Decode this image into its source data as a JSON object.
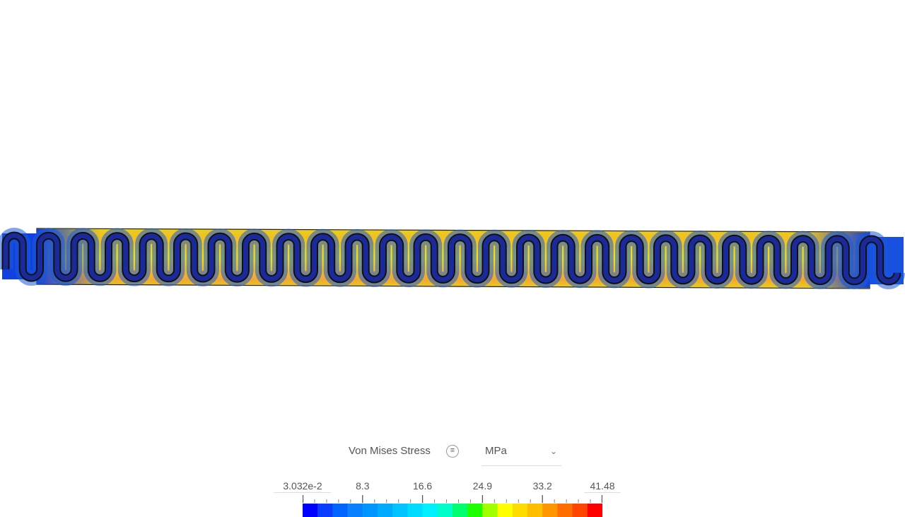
{
  "legend": {
    "title": "Von Mises Stress",
    "info_icon": "list-icon",
    "info_glyph": "≡",
    "unit": "MPa",
    "dropdown_icon": "chevron-down-icon",
    "tick_labels": [
      "3.032e-2",
      "8.3",
      "16.6",
      "24.9",
      "33.2",
      "41.48"
    ],
    "min": 0.03032,
    "max": 41.48,
    "colors": [
      "#0000ff",
      "#0a3cff",
      "#0064ff",
      "#0a82ff",
      "#0096ff",
      "#00aaff",
      "#00c3ff",
      "#00dcff",
      "#00f0ff",
      "#00ffc8",
      "#00ff6e",
      "#1eff00",
      "#a0ff00",
      "#ffff00",
      "#ffdc00",
      "#ffbe00",
      "#ff9600",
      "#ff6e00",
      "#ff4600",
      "#ff0000"
    ]
  }
}
